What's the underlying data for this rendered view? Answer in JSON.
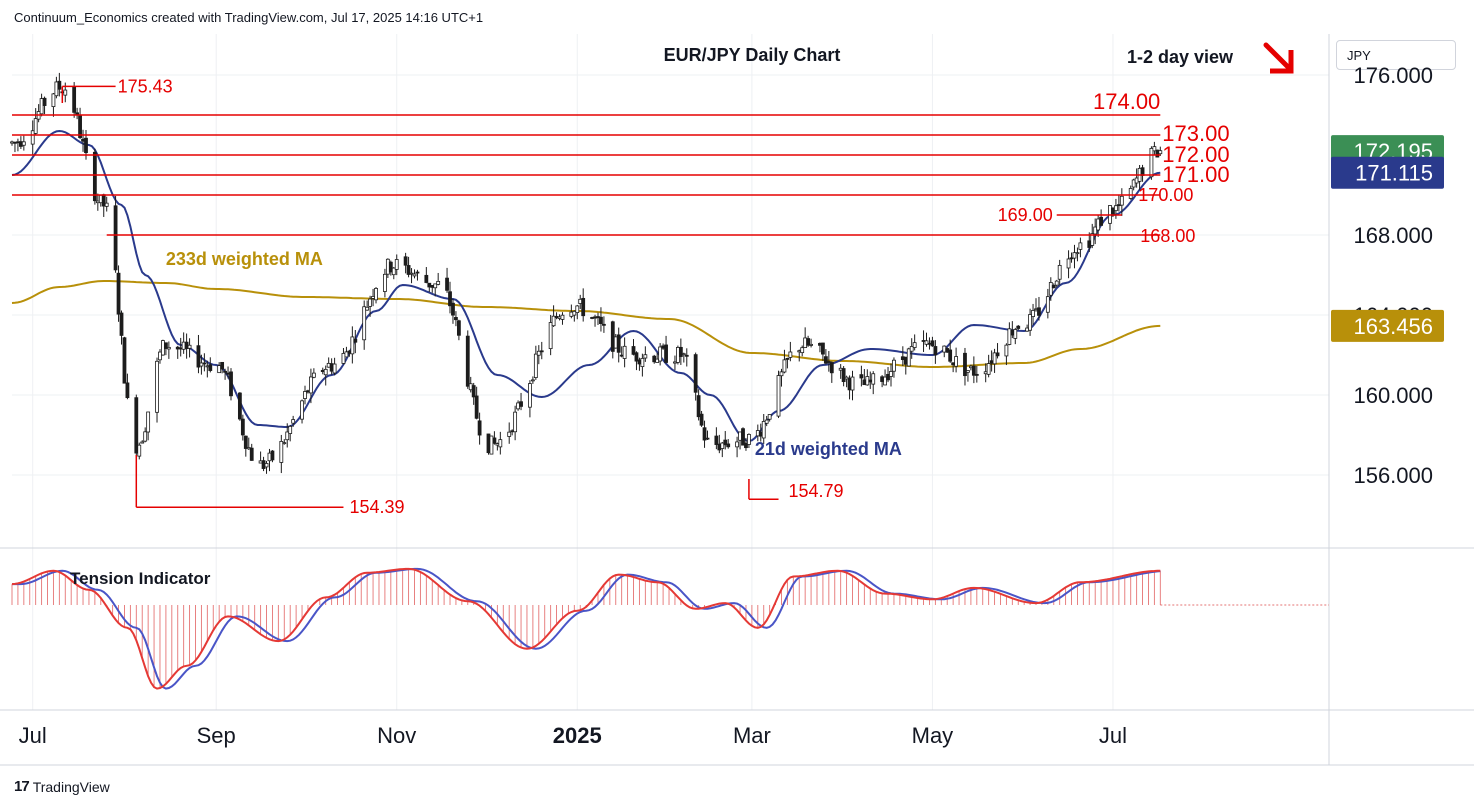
{
  "header": {
    "credit": "Continuum_Economics created with TradingView.com, Jul 17, 2025 14:16 UTC+1"
  },
  "currency_button": "JPY",
  "footer": {
    "brand": "TradingView",
    "logo_glyph": "17"
  },
  "colors": {
    "red": "#e50000",
    "candle_up": "#ffffff",
    "candle_dark": "#1c1c1c",
    "ma_fast": "#2a3a8c",
    "ma_slow": "#b8900a",
    "price_badge_green": "#3b8f55",
    "price_badge_navy": "#2a3a8c",
    "price_badge_gold": "#b8900a",
    "grid": "#eef0f3"
  },
  "chart_data": {
    "type": "candlestick",
    "title": "EUR/JPY Daily Chart",
    "view_label": "1-2 day view",
    "view_arrow": "down-right-arrow",
    "y_axis": {
      "ticks": [
        "176.000",
        "168.000",
        "164.000",
        "160.000",
        "156.000"
      ],
      "tick_values": [
        176,
        168,
        164,
        160,
        156
      ]
    },
    "x_axis": {
      "labels": [
        "Jul",
        "Sep",
        "Nov",
        "2025",
        "Mar",
        "May",
        "Jul"
      ],
      "dates": [
        "2024-07-01",
        "2024-09-01",
        "2024-11-01",
        "2025-01-01",
        "2025-03-01",
        "2025-05-01",
        "2025-07-01"
      ],
      "bold": [
        false,
        false,
        false,
        true,
        false,
        false,
        false
      ]
    },
    "levels": [
      {
        "value": 175.43,
        "label": "175.43",
        "from_date": "2024-07-11",
        "to_date": "2024-07-29"
      },
      {
        "value": 174.0,
        "label": "174.00",
        "from_date": "2024-06-24",
        "to_date": "2025-07-17"
      },
      {
        "value": 173.0,
        "label": "173.00",
        "from_date": "2024-06-24",
        "to_date": "2025-07-17"
      },
      {
        "value": 172.0,
        "label": "172.00",
        "from_date": "2024-06-24",
        "to_date": "2025-07-17"
      },
      {
        "value": 171.0,
        "label": "171.00",
        "from_date": "2024-06-24",
        "to_date": "2025-07-17"
      },
      {
        "value": 170.0,
        "label": "170.00",
        "from_date": "2024-06-24",
        "to_date": "2025-07-17"
      },
      {
        "value": 169.0,
        "label": "169.00",
        "from_date": "2025-06-12",
        "to_date": "2025-07-04"
      },
      {
        "value": 168.0,
        "label": "168.00",
        "from_date": "2024-07-26",
        "to_date": "2025-07-17"
      },
      {
        "value": 154.39,
        "label": "154.39",
        "from_date": "2024-08-05",
        "to_date": "2024-10-14"
      },
      {
        "value": 154.79,
        "label": "154.79",
        "from_date": "2025-02-28",
        "to_date": "2025-03-10"
      }
    ],
    "series": [
      {
        "name": "233d weighted MA",
        "points": [
          [
            "2024-06-24",
            164.6
          ],
          [
            "2024-07-10",
            165.4
          ],
          [
            "2024-07-25",
            165.7
          ],
          [
            "2024-08-15",
            165.6
          ],
          [
            "2024-09-01",
            165.3
          ],
          [
            "2024-10-01",
            164.9
          ],
          [
            "2024-11-01",
            164.8
          ],
          [
            "2024-12-01",
            164.4
          ],
          [
            "2025-01-01",
            164.2
          ],
          [
            "2025-02-01",
            163.8
          ],
          [
            "2025-03-01",
            162.1
          ],
          [
            "2025-04-01",
            161.7
          ],
          [
            "2025-05-01",
            161.4
          ],
          [
            "2025-06-01",
            161.6
          ],
          [
            "2025-06-20",
            162.3
          ],
          [
            "2025-07-17",
            163.456
          ]
        ]
      },
      {
        "name": "21d weighted MA",
        "points": [
          [
            "2024-06-24",
            171.0
          ],
          [
            "2024-07-10",
            173.2
          ],
          [
            "2024-07-20",
            172.5
          ],
          [
            "2024-07-31",
            169.5
          ],
          [
            "2024-08-08",
            166.0
          ],
          [
            "2024-08-20",
            162.5
          ],
          [
            "2024-09-01",
            161.5
          ],
          [
            "2024-09-15",
            158.5
          ],
          [
            "2024-09-25",
            158.4
          ],
          [
            "2024-10-10",
            161.0
          ],
          [
            "2024-10-25",
            164.2
          ],
          [
            "2024-11-03",
            165.5
          ],
          [
            "2024-11-20",
            164.8
          ],
          [
            "2024-12-05",
            161.0
          ],
          [
            "2024-12-20",
            159.9
          ],
          [
            "2025-01-05",
            161.5
          ],
          [
            "2025-01-20",
            163.2
          ],
          [
            "2025-02-05",
            161.1
          ],
          [
            "2025-02-15",
            160.0
          ],
          [
            "2025-02-28",
            157.7
          ],
          [
            "2025-03-10",
            159.2
          ],
          [
            "2025-03-25",
            161.5
          ],
          [
            "2025-04-10",
            162.3
          ],
          [
            "2025-05-01",
            162.0
          ],
          [
            "2025-05-15",
            163.5
          ],
          [
            "2025-06-01",
            163.2
          ],
          [
            "2025-06-15",
            165.6
          ],
          [
            "2025-07-01",
            169.0
          ],
          [
            "2025-07-17",
            171.115
          ]
        ]
      }
    ],
    "candles_generated": true,
    "anchors": [
      [
        "2024-06-24",
        172.6
      ],
      [
        "2024-07-11",
        175.4
      ],
      [
        "2024-07-25",
        169.5
      ],
      [
        "2024-08-05",
        157.5
      ],
      [
        "2024-08-15",
        162.5
      ],
      [
        "2024-09-01",
        161.5
      ],
      [
        "2024-09-16",
        156.5
      ],
      [
        "2024-10-10",
        161.5
      ],
      [
        "2024-10-31",
        166.5
      ],
      [
        "2024-11-15",
        165.5
      ],
      [
        "2024-12-03",
        157.5
      ],
      [
        "2024-12-30",
        164.5
      ],
      [
        "2025-01-20",
        162.0
      ],
      [
        "2025-02-05",
        162.0
      ],
      [
        "2025-02-15",
        157.5
      ],
      [
        "2025-02-28",
        157.8
      ],
      [
        "2025-03-18",
        162.5
      ],
      [
        "2025-04-07",
        160.5
      ],
      [
        "2025-04-30",
        162.5
      ],
      [
        "2025-05-15",
        161.2
      ],
      [
        "2025-06-01",
        163.6
      ],
      [
        "2025-06-20",
        167.5
      ],
      [
        "2025-07-01",
        169.3
      ],
      [
        "2025-07-17",
        172.2
      ]
    ],
    "price_badges": [
      {
        "label": "172.195",
        "value": 172.195,
        "color_key": "price_badge_green"
      },
      {
        "label": "171.115",
        "value": 171.115,
        "color_key": "price_badge_navy"
      },
      {
        "label": "163.456",
        "value": 163.456,
        "color_key": "price_badge_gold"
      }
    ],
    "annotations": [
      {
        "text": "233d weighted MA",
        "date": "2024-08-15",
        "value": 166.5,
        "color_key": "ma_slow"
      },
      {
        "text": "21d weighted MA",
        "date": "2025-03-02",
        "value": 157.0,
        "color_key": "ma_fast"
      }
    ],
    "indicator": {
      "name": "Tension Indicator",
      "points": [
        [
          "2024-06-24",
          0.55
        ],
        [
          "2024-07-08",
          0.9
        ],
        [
          "2024-07-20",
          0.4
        ],
        [
          "2024-08-02",
          -0.6
        ],
        [
          "2024-08-12",
          -2.2
        ],
        [
          "2024-08-22",
          -1.6
        ],
        [
          "2024-09-05",
          -0.3
        ],
        [
          "2024-09-22",
          -0.95
        ],
        [
          "2024-10-08",
          0.2
        ],
        [
          "2024-10-22",
          0.85
        ],
        [
          "2024-11-05",
          0.95
        ],
        [
          "2024-11-25",
          0.1
        ],
        [
          "2024-12-15",
          -1.15
        ],
        [
          "2025-01-01",
          -0.15
        ],
        [
          "2025-01-15",
          0.8
        ],
        [
          "2025-01-28",
          0.6
        ],
        [
          "2025-02-10",
          -0.1
        ],
        [
          "2025-02-20",
          0.05
        ],
        [
          "2025-03-03",
          -0.6
        ],
        [
          "2025-03-15",
          0.75
        ],
        [
          "2025-03-30",
          0.9
        ],
        [
          "2025-04-15",
          0.3
        ],
        [
          "2025-05-01",
          0.15
        ],
        [
          "2025-05-15",
          0.45
        ],
        [
          "2025-06-05",
          0.05
        ],
        [
          "2025-06-20",
          0.6
        ],
        [
          "2025-07-17",
          0.9
        ]
      ]
    }
  }
}
